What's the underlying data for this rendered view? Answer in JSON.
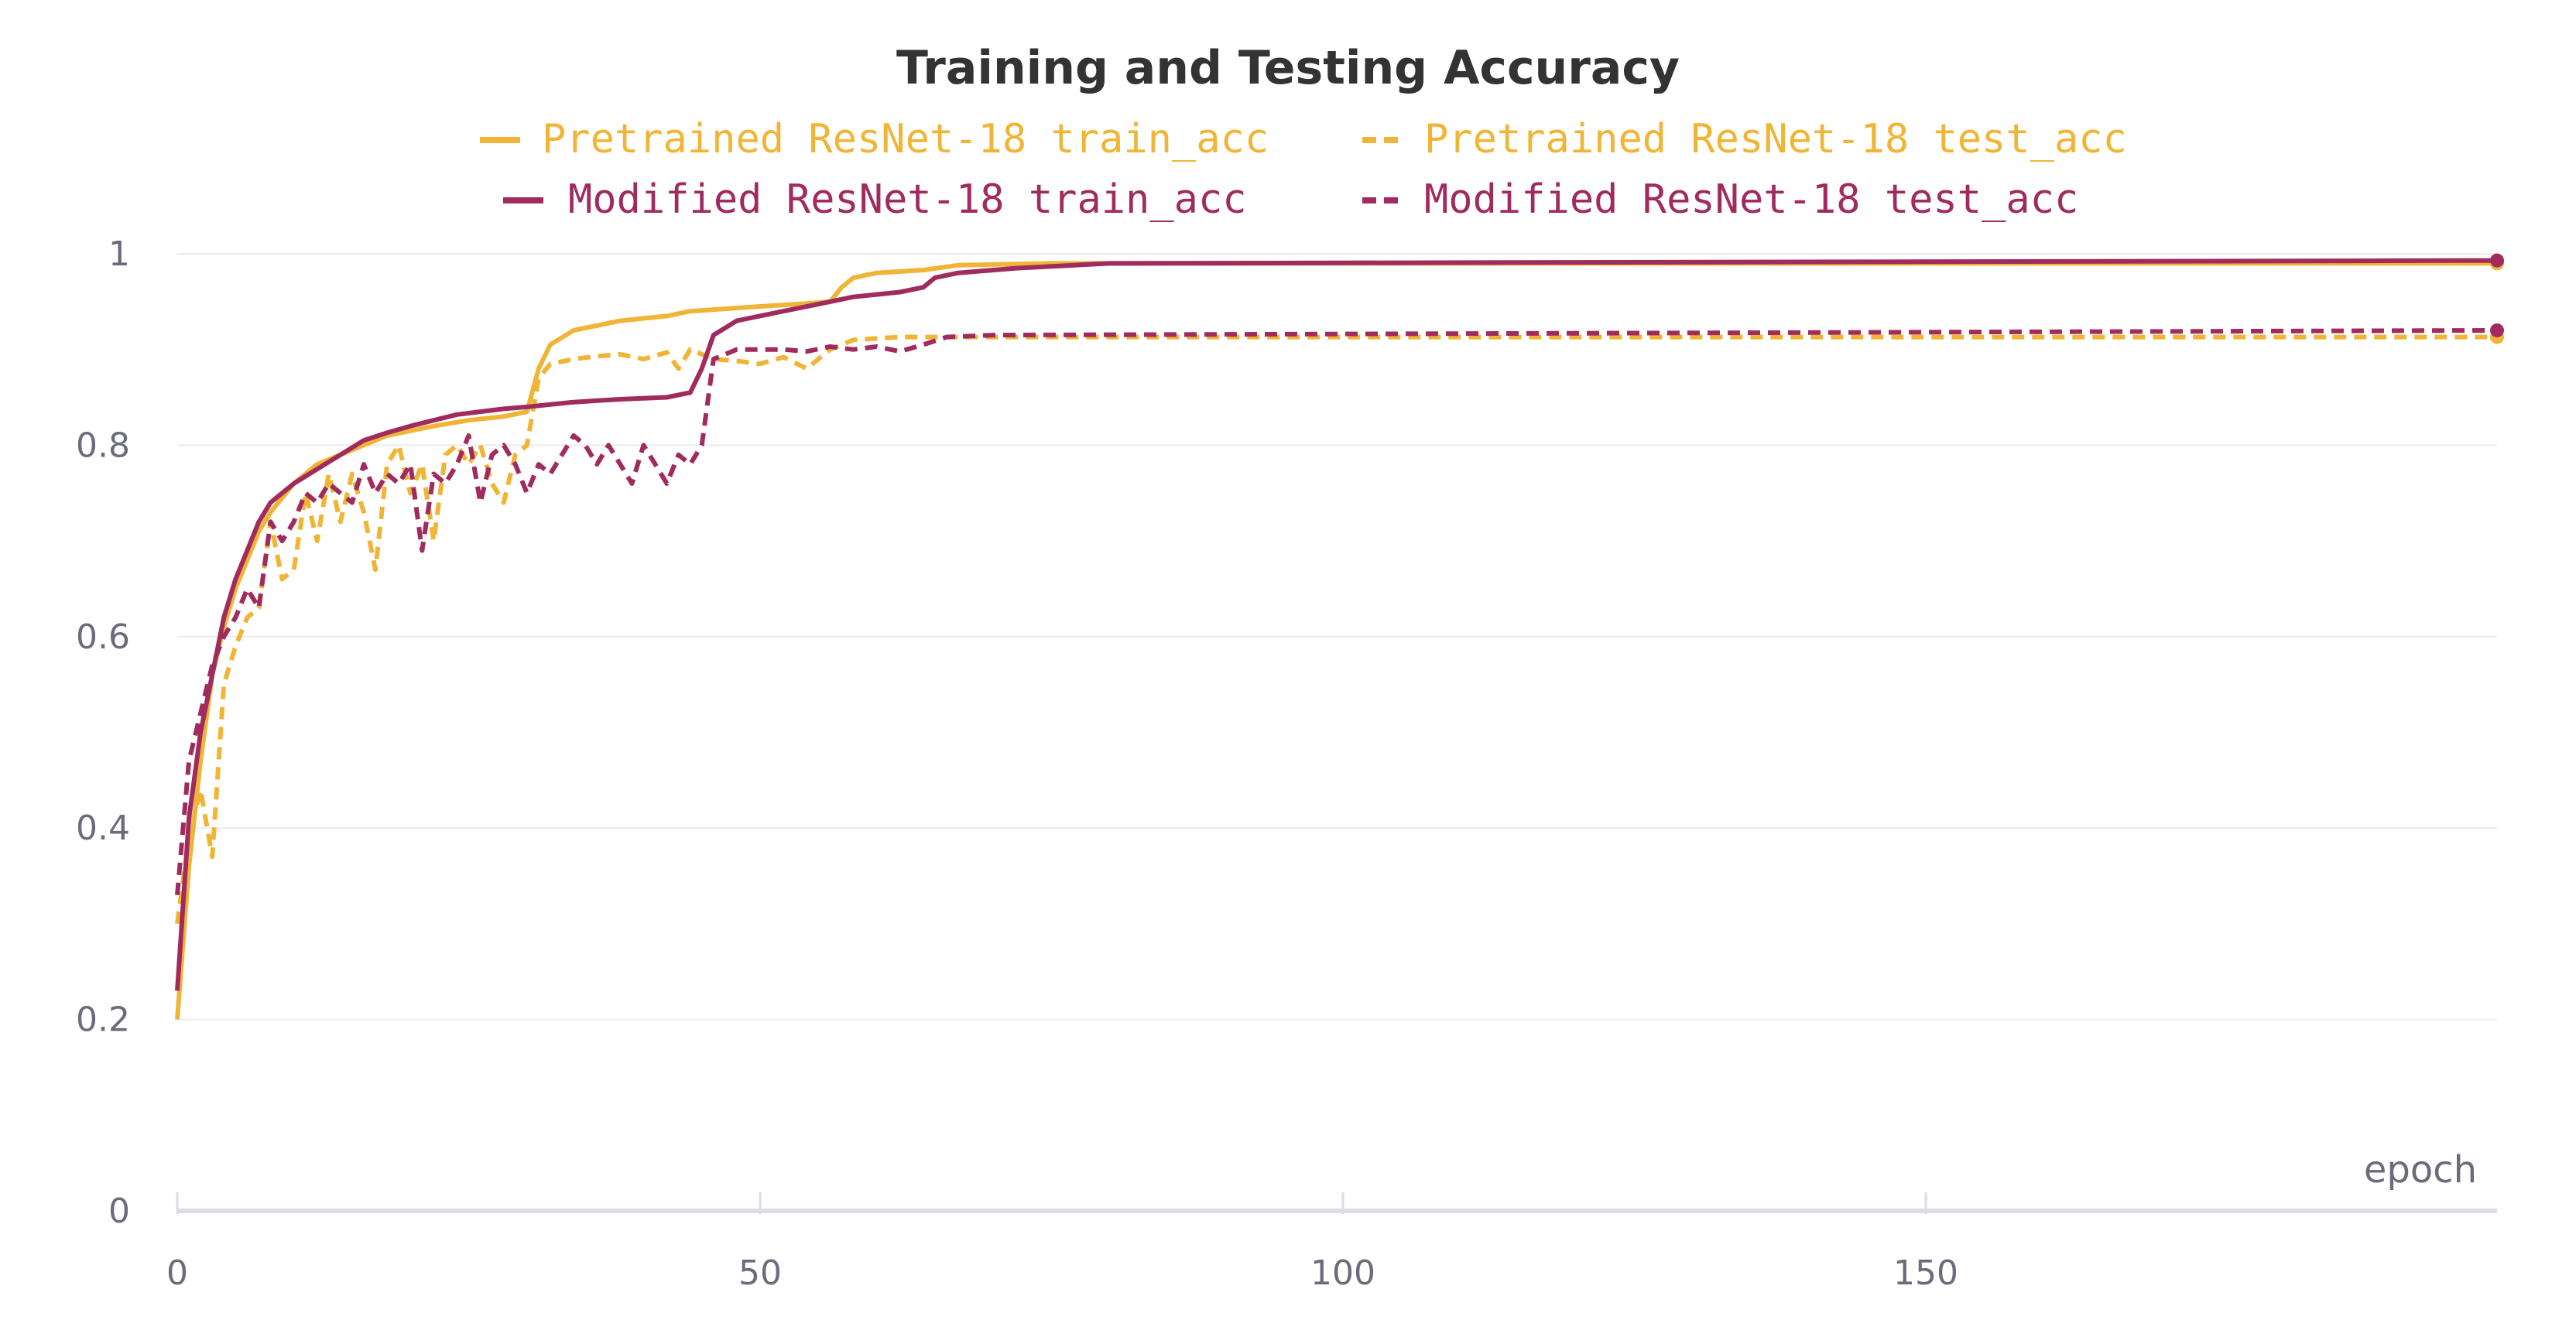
{
  "chart_data": {
    "type": "line",
    "title": "Training and Testing Accuracy",
    "xlabel": "epoch",
    "ylabel": "",
    "xlim": [
      0,
      199
    ],
    "ylim": [
      0,
      1
    ],
    "x_ticks": [
      0,
      50,
      100,
      150
    ],
    "y_ticks": [
      0,
      0.2,
      0.4,
      0.6,
      0.8,
      1
    ],
    "y_tick_labels": [
      "0",
      "0.2",
      "0.4",
      "0.6",
      "0.8",
      "1"
    ],
    "grid": true,
    "legend_position": "top",
    "series": [
      {
        "name": "Pretrained ResNet-18 train_acc",
        "color": "#f0b536",
        "dash": "solid",
        "points": [
          [
            0,
            0.2
          ],
          [
            1,
            0.36
          ],
          [
            2,
            0.47
          ],
          [
            3,
            0.56
          ],
          [
            4,
            0.61
          ],
          [
            5,
            0.65
          ],
          [
            6,
            0.68
          ],
          [
            7,
            0.71
          ],
          [
            8,
            0.73
          ],
          [
            10,
            0.76
          ],
          [
            12,
            0.78
          ],
          [
            14,
            0.79
          ],
          [
            16,
            0.8
          ],
          [
            18,
            0.81
          ],
          [
            20,
            0.815
          ],
          [
            22,
            0.82
          ],
          [
            25,
            0.826
          ],
          [
            28,
            0.83
          ],
          [
            30,
            0.835
          ],
          [
            31,
            0.88
          ],
          [
            32,
            0.905
          ],
          [
            34,
            0.92
          ],
          [
            36,
            0.925
          ],
          [
            38,
            0.93
          ],
          [
            42,
            0.935
          ],
          [
            44,
            0.94
          ],
          [
            50,
            0.945
          ],
          [
            54,
            0.948
          ],
          [
            56,
            0.95
          ],
          [
            57,
            0.965
          ],
          [
            58,
            0.975
          ],
          [
            60,
            0.98
          ],
          [
            64,
            0.983
          ],
          [
            67,
            0.988
          ],
          [
            75,
            0.99
          ],
          [
            199,
            0.99
          ]
        ]
      },
      {
        "name": "Pretrained ResNet-18 test_acc",
        "color": "#f0b536",
        "dash": "dashed",
        "points": [
          [
            0,
            0.3
          ],
          [
            1,
            0.39
          ],
          [
            2,
            0.44
          ],
          [
            3,
            0.37
          ],
          [
            4,
            0.55
          ],
          [
            5,
            0.59
          ],
          [
            6,
            0.62
          ],
          [
            7,
            0.63
          ],
          [
            8,
            0.72
          ],
          [
            9,
            0.66
          ],
          [
            10,
            0.67
          ],
          [
            11,
            0.75
          ],
          [
            12,
            0.7
          ],
          [
            13,
            0.77
          ],
          [
            14,
            0.72
          ],
          [
            15,
            0.77
          ],
          [
            16,
            0.73
          ],
          [
            17,
            0.67
          ],
          [
            18,
            0.78
          ],
          [
            19,
            0.8
          ],
          [
            20,
            0.75
          ],
          [
            21,
            0.78
          ],
          [
            22,
            0.7
          ],
          [
            23,
            0.79
          ],
          [
            24,
            0.8
          ],
          [
            25,
            0.78
          ],
          [
            26,
            0.8
          ],
          [
            27,
            0.76
          ],
          [
            28,
            0.74
          ],
          [
            29,
            0.79
          ],
          [
            30,
            0.8
          ],
          [
            31,
            0.87
          ],
          [
            32,
            0.885
          ],
          [
            34,
            0.89
          ],
          [
            36,
            0.893
          ],
          [
            38,
            0.895
          ],
          [
            40,
            0.89
          ],
          [
            42,
            0.897
          ],
          [
            43,
            0.88
          ],
          [
            44,
            0.9
          ],
          [
            46,
            0.89
          ],
          [
            48,
            0.888
          ],
          [
            50,
            0.885
          ],
          [
            52,
            0.892
          ],
          [
            54,
            0.88
          ],
          [
            56,
            0.9
          ],
          [
            58,
            0.91
          ],
          [
            62,
            0.913
          ],
          [
            66,
            0.913
          ],
          [
            199,
            0.913
          ]
        ]
      },
      {
        "name": "Modified ResNet-18 train_acc",
        "color": "#a02b5f",
        "dash": "solid",
        "points": [
          [
            0,
            0.23
          ],
          [
            1,
            0.41
          ],
          [
            2,
            0.5
          ],
          [
            3,
            0.56
          ],
          [
            4,
            0.62
          ],
          [
            5,
            0.66
          ],
          [
            6,
            0.69
          ],
          [
            7,
            0.72
          ],
          [
            8,
            0.74
          ],
          [
            10,
            0.76
          ],
          [
            12,
            0.775
          ],
          [
            14,
            0.79
          ],
          [
            16,
            0.805
          ],
          [
            18,
            0.813
          ],
          [
            20,
            0.82
          ],
          [
            22,
            0.826
          ],
          [
            24,
            0.832
          ],
          [
            28,
            0.838
          ],
          [
            30,
            0.84
          ],
          [
            34,
            0.845
          ],
          [
            38,
            0.848
          ],
          [
            42,
            0.85
          ],
          [
            44,
            0.855
          ],
          [
            45,
            0.88
          ],
          [
            46,
            0.915
          ],
          [
            48,
            0.93
          ],
          [
            52,
            0.94
          ],
          [
            56,
            0.95
          ],
          [
            58,
            0.955
          ],
          [
            62,
            0.96
          ],
          [
            64,
            0.965
          ],
          [
            65,
            0.975
          ],
          [
            67,
            0.98
          ],
          [
            72,
            0.985
          ],
          [
            80,
            0.99
          ],
          [
            199,
            0.993
          ]
        ]
      },
      {
        "name": "Modified ResNet-18 test_acc",
        "color": "#a02b5f",
        "dash": "dashed",
        "points": [
          [
            0,
            0.33
          ],
          [
            1,
            0.47
          ],
          [
            2,
            0.52
          ],
          [
            3,
            0.57
          ],
          [
            4,
            0.6
          ],
          [
            5,
            0.62
          ],
          [
            6,
            0.65
          ],
          [
            7,
            0.63
          ],
          [
            8,
            0.72
          ],
          [
            9,
            0.7
          ],
          [
            10,
            0.72
          ],
          [
            11,
            0.75
          ],
          [
            12,
            0.74
          ],
          [
            13,
            0.76
          ],
          [
            14,
            0.75
          ],
          [
            15,
            0.74
          ],
          [
            16,
            0.78
          ],
          [
            17,
            0.75
          ],
          [
            18,
            0.77
          ],
          [
            19,
            0.76
          ],
          [
            20,
            0.78
          ],
          [
            21,
            0.69
          ],
          [
            22,
            0.77
          ],
          [
            23,
            0.76
          ],
          [
            24,
            0.78
          ],
          [
            25,
            0.81
          ],
          [
            26,
            0.74
          ],
          [
            27,
            0.79
          ],
          [
            28,
            0.8
          ],
          [
            29,
            0.78
          ],
          [
            30,
            0.75
          ],
          [
            31,
            0.78
          ],
          [
            32,
            0.77
          ],
          [
            33,
            0.79
          ],
          [
            34,
            0.81
          ],
          [
            35,
            0.8
          ],
          [
            36,
            0.78
          ],
          [
            37,
            0.8
          ],
          [
            38,
            0.78
          ],
          [
            39,
            0.76
          ],
          [
            40,
            0.8
          ],
          [
            41,
            0.78
          ],
          [
            42,
            0.76
          ],
          [
            43,
            0.79
          ],
          [
            44,
            0.78
          ],
          [
            45,
            0.8
          ],
          [
            46,
            0.89
          ],
          [
            48,
            0.9
          ],
          [
            50,
            0.9
          ],
          [
            52,
            0.9
          ],
          [
            54,
            0.898
          ],
          [
            56,
            0.903
          ],
          [
            58,
            0.9
          ],
          [
            60,
            0.903
          ],
          [
            62,
            0.898
          ],
          [
            64,
            0.905
          ],
          [
            66,
            0.913
          ],
          [
            70,
            0.915
          ],
          [
            199,
            0.92
          ]
        ]
      }
    ]
  }
}
